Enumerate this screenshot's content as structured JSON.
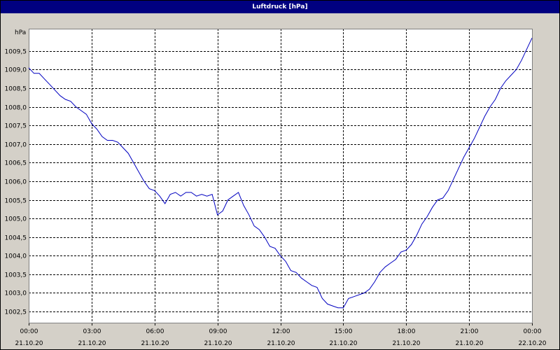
{
  "window": {
    "title": "Luftdruck [hPa]"
  },
  "colors": {
    "titlebar": "#000080",
    "line": "#0000c0",
    "plot_bg": "#ffffff",
    "window_bg": "#d4d0c8",
    "grid": "#000000"
  },
  "chart_data": {
    "type": "line",
    "title": "Luftdruck [hPa]",
    "ylabel": "hPa",
    "ylim": [
      1002.2,
      1010.1
    ],
    "grid": true,
    "grid_style": "dashed",
    "y_ticks": [
      "1002,5",
      "1003,0",
      "1003,5",
      "1004,0",
      "1004,5",
      "1005,0",
      "1005,5",
      "1006,0",
      "1006,5",
      "1007,0",
      "1007,5",
      "1008,0",
      "1008,5",
      "1009,0",
      "1009,5"
    ],
    "y_tick_values": [
      1002.5,
      1003.0,
      1003.5,
      1004.0,
      1004.5,
      1005.0,
      1005.5,
      1006.0,
      1006.5,
      1007.0,
      1007.5,
      1008.0,
      1008.5,
      1009.0,
      1009.5
    ],
    "x_tick_hours": [
      0,
      3,
      6,
      9,
      12,
      15,
      18,
      21,
      24
    ],
    "x_ticks": [
      {
        "time": "00:00",
        "date": "21.10.20"
      },
      {
        "time": "03:00",
        "date": "21.10.20"
      },
      {
        "time": "06:00",
        "date": "21.10.20"
      },
      {
        "time": "09:00",
        "date": "21.10.20"
      },
      {
        "time": "12:00",
        "date": "21.10.20"
      },
      {
        "time": "15:00",
        "date": "21.10.20"
      },
      {
        "time": "18:00",
        "date": "21.10.20"
      },
      {
        "time": "21:00",
        "date": "21.10.20"
      },
      {
        "time": "00:00",
        "date": "22.10.20"
      }
    ],
    "xlim_hours": [
      0,
      24
    ],
    "series": [
      {
        "color": "#0000c0",
        "hours": [
          0,
          0.25,
          0.5,
          0.75,
          1,
          1.25,
          1.5,
          1.75,
          2,
          2.25,
          2.5,
          2.75,
          3,
          3.25,
          3.5,
          3.75,
          4,
          4.25,
          4.5,
          4.75,
          5,
          5.25,
          5.5,
          5.75,
          6,
          6.25,
          6.5,
          6.75,
          7,
          7.25,
          7.5,
          7.75,
          8,
          8.25,
          8.5,
          8.75,
          9,
          9.25,
          9.5,
          9.75,
          10,
          10.25,
          10.5,
          10.75,
          11,
          11.25,
          11.5,
          11.75,
          12,
          12.25,
          12.5,
          12.75,
          13,
          13.25,
          13.5,
          13.75,
          14,
          14.25,
          14.5,
          14.75,
          15,
          15.25,
          15.5,
          15.75,
          16,
          16.25,
          16.5,
          16.75,
          17,
          17.25,
          17.5,
          17.75,
          18,
          18.25,
          18.5,
          18.75,
          19,
          19.25,
          19.5,
          19.75,
          20,
          20.25,
          20.5,
          20.75,
          21,
          21.25,
          21.5,
          21.75,
          22,
          22.25,
          22.5,
          22.75,
          23,
          23.25,
          23.5,
          23.75,
          24
        ],
        "values": [
          1009.05,
          1008.9,
          1008.9,
          1008.75,
          1008.6,
          1008.45,
          1008.3,
          1008.2,
          1008.15,
          1008.0,
          1007.9,
          1007.8,
          1007.55,
          1007.4,
          1007.2,
          1007.1,
          1007.1,
          1007.05,
          1006.9,
          1006.75,
          1006.5,
          1006.25,
          1006.0,
          1005.8,
          1005.75,
          1005.6,
          1005.4,
          1005.65,
          1005.7,
          1005.6,
          1005.7,
          1005.7,
          1005.6,
          1005.65,
          1005.6,
          1005.65,
          1005.1,
          1005.2,
          1005.5,
          1005.6,
          1005.7,
          1005.35,
          1005.1,
          1004.8,
          1004.7,
          1004.5,
          1004.25,
          1004.2,
          1004.0,
          1003.85,
          1003.6,
          1003.55,
          1003.4,
          1003.3,
          1003.2,
          1003.15,
          1002.85,
          1002.7,
          1002.65,
          1002.6,
          1002.6,
          1002.85,
          1002.9,
          1002.95,
          1003.0,
          1003.1,
          1003.3,
          1003.55,
          1003.7,
          1003.8,
          1003.9,
          1004.1,
          1004.15,
          1004.3,
          1004.55,
          1004.85,
          1005.05,
          1005.3,
          1005.5,
          1005.55,
          1005.75,
          1006.05,
          1006.35,
          1006.65,
          1006.9,
          1007.15,
          1007.45,
          1007.75,
          1008.0,
          1008.2,
          1008.5,
          1008.7,
          1008.85,
          1009.0,
          1009.25,
          1009.55,
          1009.85
        ]
      }
    ]
  }
}
